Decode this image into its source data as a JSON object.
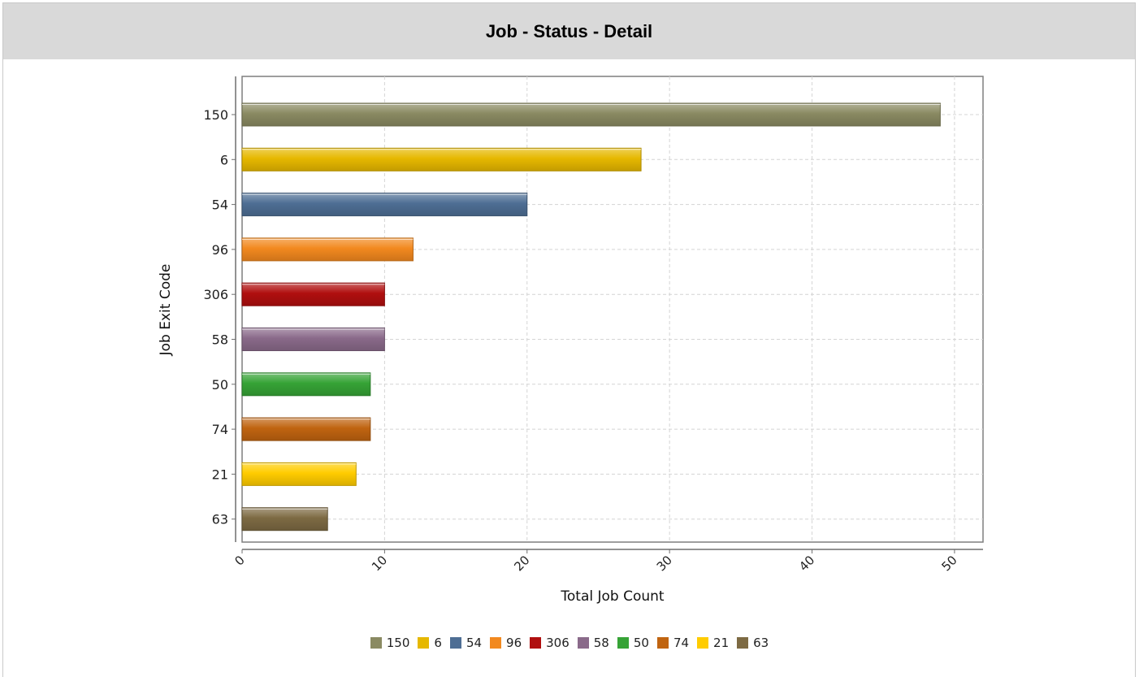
{
  "header": {
    "title": "Job - Status - Detail"
  },
  "chart_data": {
    "type": "bar",
    "orientation": "horizontal",
    "title": "Job - Status - Detail",
    "xlabel": "Total Job Count",
    "ylabel": "Job Exit Code",
    "xlim": [
      0,
      52
    ],
    "x_ticks": [
      0,
      10,
      20,
      30,
      40,
      50
    ],
    "grid": true,
    "legend_position": "bottom",
    "categories": [
      "150",
      "6",
      "54",
      "96",
      "306",
      "58",
      "50",
      "74",
      "21",
      "63"
    ],
    "values": [
      49,
      28,
      20,
      12,
      10,
      10,
      9,
      9,
      8,
      6
    ],
    "colors": [
      "#8a8a62",
      "#e6b800",
      "#4e6e94",
      "#f2891f",
      "#b00f0f",
      "#8a6a8a",
      "#36a336",
      "#c06410",
      "#ffcc00",
      "#7d6a43"
    ]
  }
}
